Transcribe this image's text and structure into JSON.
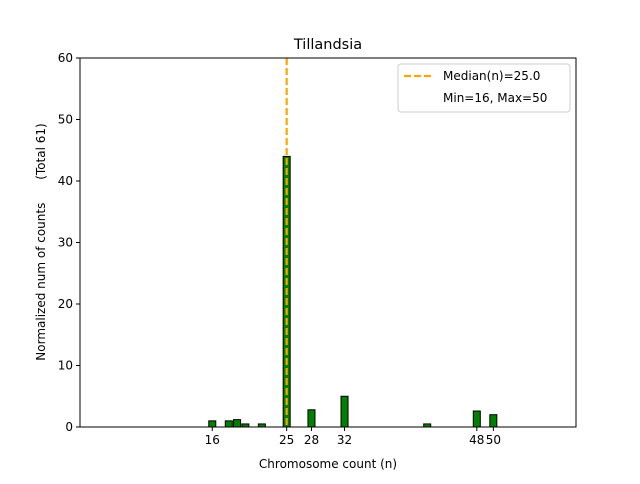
{
  "chart_data": {
    "type": "bar",
    "title": "Tillandsia",
    "xlabel": "Chromosome count (n)",
    "ylabel": "Normalized num of counts      (Total 61)",
    "xlim": [
      0,
      60
    ],
    "ylim": [
      0,
      60
    ],
    "xticks": [
      16,
      25,
      28,
      32,
      48,
      50
    ],
    "yticks": [
      0,
      10,
      20,
      30,
      40,
      50,
      60
    ],
    "grid": false,
    "x": [
      16,
      18,
      19,
      20,
      22,
      25,
      28,
      32,
      42,
      48,
      50
    ],
    "values": [
      1.0,
      1.0,
      1.2,
      0.5,
      0.5,
      44.0,
      2.8,
      5.0,
      0.5,
      2.6,
      2.0
    ],
    "bar_color": "#008000",
    "bar_edge_color": "#000000",
    "median": {
      "value": 25.0,
      "color": "#ffa500",
      "style": "dashed"
    },
    "legend": {
      "placement": "top-right",
      "entries": [
        "Median(n)=25.0",
        "Min=16, Max=50"
      ]
    }
  }
}
